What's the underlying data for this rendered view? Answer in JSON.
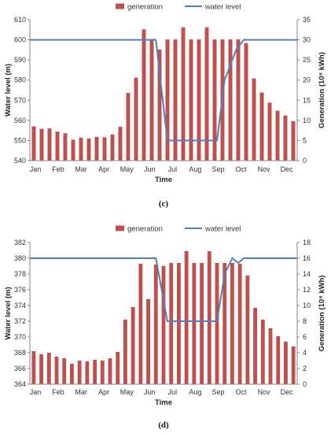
{
  "colors": {
    "bar": "#c0504d",
    "line": "#4f81bd",
    "axis": "#868686"
  },
  "chart_data": [
    {
      "type": "bar",
      "caption": "(c)",
      "xlabel": "Time",
      "ylabel_left": "Water level (m)",
      "ylabel_right": "Generation (10⁸ kWh)",
      "legend": [
        "generation",
        "water level"
      ],
      "legend_position": "top",
      "month_labels": [
        "Jan",
        "Feb",
        "Mar",
        "Apr",
        "May",
        "Jun",
        "Jul",
        "Aug",
        "Sep",
        "Oct",
        "Nov",
        "Dec"
      ],
      "ylim_left": [
        540,
        610
      ],
      "yticks_left": [
        540,
        550,
        560,
        570,
        580,
        590,
        600,
        610
      ],
      "ylim_right": [
        0,
        35
      ],
      "yticks_right": [
        0,
        5,
        10,
        15,
        20,
        25,
        30,
        35
      ],
      "generation": [
        8.5,
        7.9,
        8.0,
        7.2,
        6.8,
        5.2,
        5.7,
        5.5,
        5.9,
        5.8,
        6.5,
        8.4,
        16.8,
        20.6,
        32.6,
        30.2,
        27.6,
        30.1,
        30.1,
        33.1,
        30.1,
        30.1,
        33.1,
        30.1,
        30.1,
        30.1,
        30.1,
        29.2,
        20.4,
        16.9,
        14.4,
        12.4,
        11.2,
        9.8
      ],
      "water_level": [
        [
          0,
          600
        ],
        [
          15.8,
          600
        ],
        [
          16.5,
          600
        ],
        [
          18,
          550
        ],
        [
          20.5,
          550
        ],
        [
          23,
          550
        ],
        [
          24.5,
          550
        ],
        [
          25.5,
          580
        ],
        [
          27,
          595
        ],
        [
          28,
          600
        ],
        [
          35,
          600
        ]
      ]
    },
    {
      "type": "bar",
      "caption": "(d)",
      "xlabel": "Time",
      "ylabel_left": "Water level (m)",
      "ylabel_right": "Generation (10⁸ kWh)",
      "legend": [
        "generation",
        "water level"
      ],
      "legend_position": "top",
      "month_labels": [
        "Jan",
        "Feb",
        "Mar",
        "Apr",
        "May",
        "Jun",
        "Jul",
        "Aug",
        "Sep",
        "Oct",
        "Nov",
        "Dec"
      ],
      "ylim_left": [
        364,
        382
      ],
      "yticks_left": [
        364,
        366,
        368,
        370,
        372,
        374,
        376,
        378,
        380,
        382
      ],
      "ylim_right": [
        0,
        18
      ],
      "yticks_right": [
        0,
        2,
        4,
        6,
        8,
        10,
        12,
        14,
        16,
        18
      ],
      "generation": [
        4.2,
        3.8,
        4.0,
        3.5,
        3.3,
        2.6,
        3.0,
        2.9,
        3.1,
        3.0,
        3.3,
        4.1,
        8.2,
        9.8,
        15.3,
        10.8,
        15.2,
        15.0,
        15.4,
        15.4,
        16.9,
        15.4,
        15.4,
        16.9,
        15.4,
        15.4,
        15.4,
        15.3,
        13.8,
        9.7,
        8.2,
        7.1,
        6.1,
        5.4,
        4.8
      ],
      "water_level": [
        [
          0,
          380
        ],
        [
          15.8,
          380
        ],
        [
          16.5,
          380
        ],
        [
          18,
          372
        ],
        [
          20.5,
          372
        ],
        [
          23,
          372
        ],
        [
          24.5,
          372
        ],
        [
          25.5,
          378
        ],
        [
          26.5,
          380
        ],
        [
          27.3,
          379.4
        ],
        [
          28,
          380
        ],
        [
          35,
          380
        ]
      ]
    }
  ]
}
